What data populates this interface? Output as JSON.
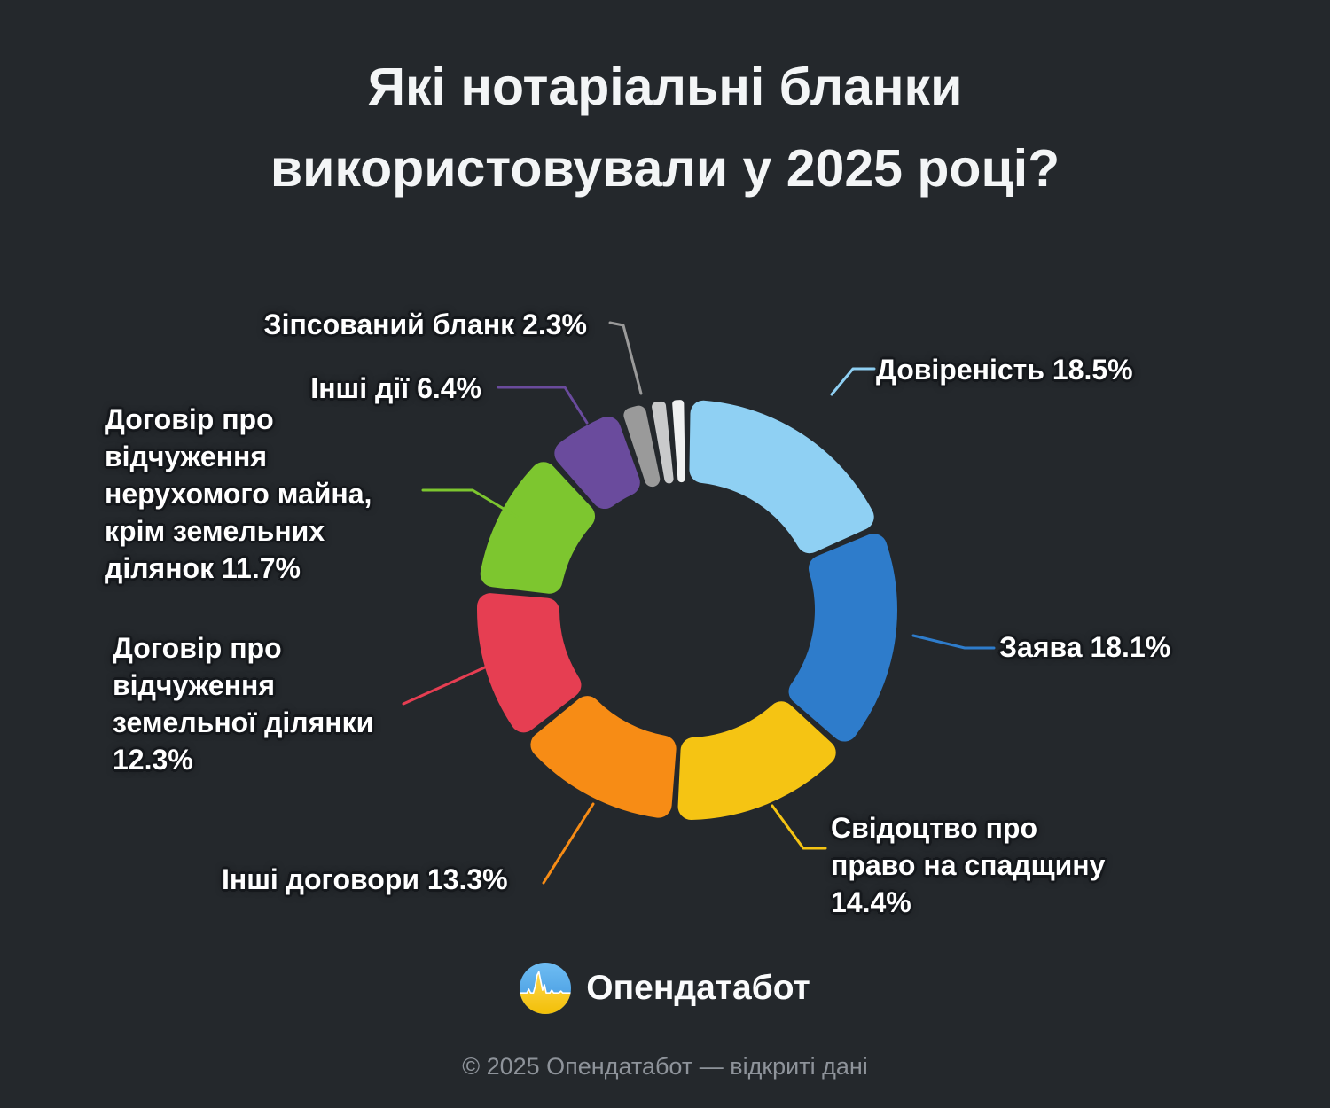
{
  "title": {
    "lines": [
      "Які нотаріальні бланки",
      "використовували у 2025 році?"
    ]
  },
  "chart_data": {
    "type": "pie",
    "variant": "donut",
    "title": "Які нотаріальні бланки використовували у 2025 році?",
    "unit": "%",
    "legend_position": "callout-labels",
    "segments": [
      {
        "id": "dovirenist",
        "label": "Довіреність",
        "value": 18.5,
        "display": "Довіреність 18.5%",
        "lines": [
          "Довіреність 18.5%"
        ],
        "color": "#8fd0f3",
        "label_visible": true
      },
      {
        "id": "zayava",
        "label": "Заява",
        "value": 18.1,
        "display": "Заява 18.1%",
        "lines": [
          "Заява 18.1%"
        ],
        "color": "#2e7ccb",
        "label_visible": true
      },
      {
        "id": "svidotstvo",
        "label": "Свідоцтво про право на спадщину",
        "value": 14.4,
        "display": "Свідоцтво про право на спадщину 14.4%",
        "lines": [
          "Свідоцтво про",
          "право на спадщину",
          "14.4%"
        ],
        "color": "#f5c413",
        "label_visible": true
      },
      {
        "id": "inshi-dohovory",
        "label": "Інші договори",
        "value": 13.3,
        "display": "Інші договори 13.3%",
        "lines": [
          "Інші договори 13.3%"
        ],
        "color": "#f78c15",
        "label_visible": true
      },
      {
        "id": "zemelna",
        "label": "Договір про відчуження земельної ділянки",
        "value": 12.3,
        "display": "Договір про відчуження земельної ділянки 12.3%",
        "lines": [
          "Договір про",
          "відчуження",
          "земельної ділянки",
          "12.3%"
        ],
        "color": "#e63e52",
        "label_visible": true
      },
      {
        "id": "nerukhome",
        "label": "Договір про відчуження нерухомого майна, крім земельних ділянок",
        "value": 11.7,
        "display": "Договір про відчуження нерухомого майна, крім земельних ділянок 11.7%",
        "lines": [
          "Договір про",
          "відчуження",
          "нерухомого майна,",
          "крім земельних",
          "ділянок 11.7%"
        ],
        "color": "#7dc62f",
        "label_visible": true
      },
      {
        "id": "inshi-diyi",
        "label": "Інші дії",
        "value": 6.4,
        "display": "Інші дії 6.4%",
        "lines": [
          "Інші дії 6.4%"
        ],
        "color": "#6a4b9d",
        "label_visible": true
      },
      {
        "id": "zipsovanyi",
        "label": "Зіпсований бланк",
        "value": 2.3,
        "display": "Зіпсований бланк 2.3%",
        "lines": [
          "Зіпсований бланк 2.3%"
        ],
        "color": "#9a9a9a",
        "label_visible": true
      },
      {
        "id": "unlabeled-1",
        "label": "",
        "value": 1.6,
        "display": "",
        "color": "#c9cacb",
        "label_visible": false
      },
      {
        "id": "unlabeled-2",
        "label": "",
        "value": 1.4,
        "display": "",
        "color": "#f0f1f1",
        "label_visible": false
      }
    ]
  },
  "footer": {
    "brand": "Опендатабот",
    "copyright": "© 2025 Опендатабот — відкриті дані"
  },
  "colors": {
    "background": "#24282c",
    "title": "#f3f5f6",
    "label_text": "#ffffff",
    "label_outline": "#15181c",
    "copyright": "#8e939a",
    "logo_blue": "#55abe9",
    "logo_yellow": "#f8c713"
  }
}
